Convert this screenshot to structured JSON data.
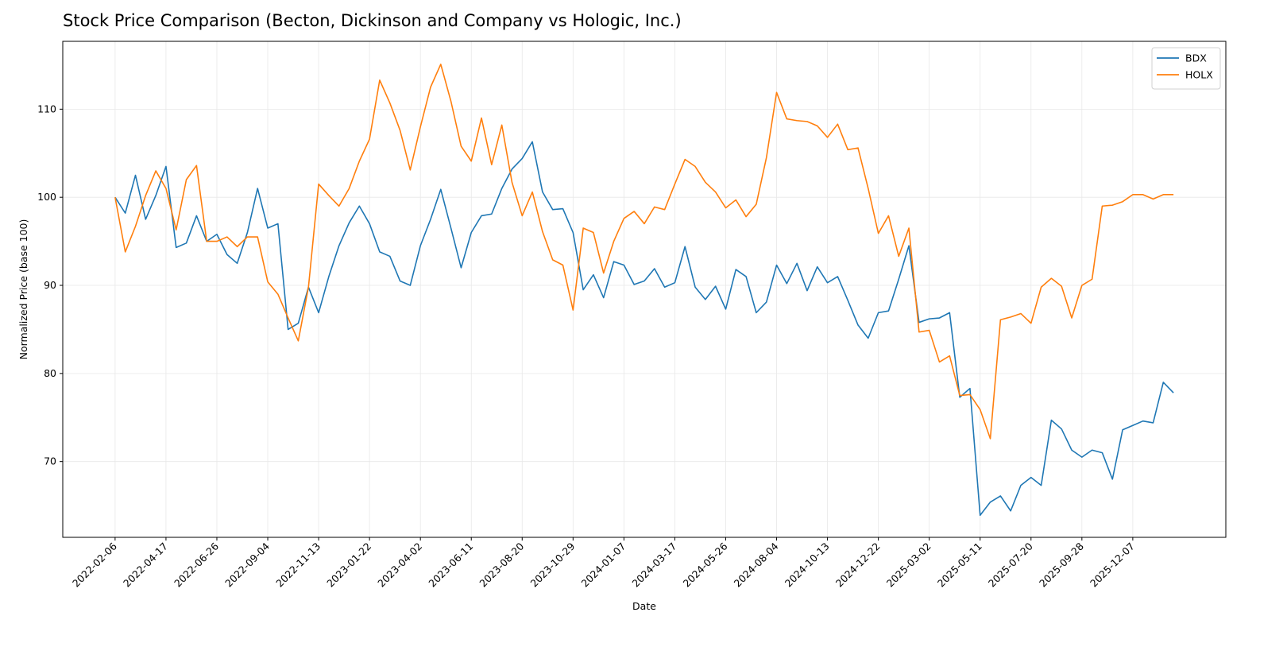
{
  "chart_data": {
    "type": "line",
    "title": "Stock Price Comparison (Becton, Dickinson and Company vs Hologic, Inc.)",
    "x_label": "Date",
    "y_label": "Normalized Price (base 100)",
    "x": [
      "2022-02-06",
      "2022-02-20",
      "2022-03-06",
      "2022-03-20",
      "2022-04-03",
      "2022-04-17",
      "2022-05-01",
      "2022-05-15",
      "2022-05-29",
      "2022-06-12",
      "2022-06-26",
      "2022-07-10",
      "2022-07-24",
      "2022-08-07",
      "2022-08-21",
      "2022-09-04",
      "2022-09-18",
      "2022-10-02",
      "2022-10-16",
      "2022-10-30",
      "2022-11-13",
      "2022-11-27",
      "2022-12-11",
      "2022-12-25",
      "2023-01-08",
      "2023-01-22",
      "2023-02-05",
      "2023-02-19",
      "2023-03-05",
      "2023-03-19",
      "2023-04-02",
      "2023-04-16",
      "2023-04-30",
      "2023-05-14",
      "2023-05-28",
      "2023-06-11",
      "2023-06-25",
      "2023-07-09",
      "2023-07-23",
      "2023-08-06",
      "2023-08-20",
      "2023-09-03",
      "2023-09-17",
      "2023-10-01",
      "2023-10-15",
      "2023-10-29",
      "2023-11-12",
      "2023-11-26",
      "2023-12-10",
      "2023-12-24",
      "2024-01-07",
      "2024-01-21",
      "2024-02-04",
      "2024-02-18",
      "2024-03-03",
      "2024-03-17",
      "2024-03-31",
      "2024-04-14",
      "2024-04-28",
      "2024-05-12",
      "2024-05-26",
      "2024-06-09",
      "2024-06-23",
      "2024-07-07",
      "2024-07-21",
      "2024-08-04",
      "2024-08-18",
      "2024-09-01",
      "2024-09-15",
      "2024-09-29",
      "2024-10-13",
      "2024-10-27",
      "2024-11-10",
      "2024-11-24",
      "2024-12-08",
      "2024-12-22",
      "2025-01-05",
      "2025-01-19",
      "2025-02-02",
      "2025-02-16",
      "2025-03-02",
      "2025-03-16",
      "2025-03-30",
      "2025-04-13",
      "2025-04-27",
      "2025-05-11",
      "2025-05-25",
      "2025-06-08",
      "2025-06-22",
      "2025-07-06",
      "2025-07-20",
      "2025-08-03",
      "2025-08-17",
      "2025-08-31",
      "2025-09-14",
      "2025-09-28",
      "2025-10-12",
      "2025-10-26",
      "2025-11-09",
      "2025-11-23",
      "2025-12-07",
      "2025-12-21",
      "2026-01-04",
      "2026-01-18",
      "2026-02-01"
    ],
    "series": [
      {
        "name": "BDX",
        "color": "#1f77b4",
        "values": [
          100,
          98.2,
          102.5,
          97.5,
          100.2,
          103.5,
          94.3,
          94.8,
          97.9,
          95,
          95.8,
          93.5,
          92.5,
          96,
          101,
          96.5,
          97,
          85,
          85.7,
          89.8,
          86.9,
          91,
          94.5,
          97.1,
          99,
          97,
          93.8,
          93.3,
          90.5,
          90,
          94.5,
          97.5,
          100.9,
          96.5,
          92,
          96,
          97.9,
          98.1,
          101,
          103.2,
          104.4,
          106.3,
          100.6,
          98.6,
          98.7,
          96,
          89.5,
          91.2,
          88.6,
          92.7,
          92.3,
          90.1,
          90.5,
          91.9,
          89.8,
          90.3,
          94.4,
          89.8,
          88.4,
          89.9,
          87.3,
          91.8,
          91,
          86.9,
          88.1,
          92.3,
          90.2,
          92.5,
          89.4,
          92.1,
          90.3,
          91,
          88.3,
          85.5,
          84,
          86.9,
          87.1,
          90.7,
          94.5,
          85.8,
          86.2,
          86.3,
          86.9,
          77.3,
          78.3,
          63.9,
          65.4,
          66.1,
          64.4,
          67.3,
          68.2,
          67.3,
          74.7,
          73.7,
          71.3,
          70.5,
          71.3,
          71,
          68,
          73.6,
          74.1,
          74.6,
          74.4,
          79,
          77.8
        ]
      },
      {
        "name": "HOLX",
        "color": "#ff7f0e",
        "values": [
          100,
          93.8,
          96.7,
          100.2,
          103,
          101,
          96.3,
          102,
          103.6,
          95,
          95,
          95.5,
          94.4,
          95.5,
          95.5,
          90.4,
          89,
          86.3,
          83.7,
          89.8,
          101.5,
          100.2,
          99,
          101,
          104.1,
          106.6,
          113.3,
          110.7,
          107.6,
          103.1,
          108,
          112.5,
          115.1,
          110.9,
          105.8,
          104.1,
          109,
          103.7,
          108.2,
          101.7,
          97.9,
          100.6,
          96.1,
          92.9,
          92.3,
          87.2,
          96.5,
          96,
          91.4,
          95,
          97.6,
          98.4,
          97,
          98.9,
          98.6,
          101.5,
          104.3,
          103.5,
          101.7,
          100.6,
          98.8,
          99.7,
          97.8,
          99.2,
          104.5,
          111.9,
          108.9,
          108.7,
          108.6,
          108.1,
          106.8,
          108.3,
          105.4,
          105.6,
          101,
          95.9,
          97.9,
          93.3,
          96.5,
          84.7,
          84.9,
          81.3,
          82,
          77.5,
          77.6,
          75.9,
          72.6,
          86.1,
          86.4,
          86.8,
          85.7,
          89.8,
          90.8,
          89.9,
          86.3,
          90,
          90.7,
          99,
          99.1,
          99.5,
          100.3,
          100.3,
          99.8,
          100.3,
          100.3
        ]
      }
    ],
    "xlim": [
      "2021-11-26",
      "2026-04-14"
    ],
    "xticks": [
      "2022-02-06",
      "2022-04-17",
      "2022-06-26",
      "2022-09-04",
      "2022-11-13",
      "2023-01-22",
      "2023-04-02",
      "2023-06-11",
      "2023-08-20",
      "2023-10-29",
      "2024-01-07",
      "2024-03-17",
      "2024-05-26",
      "2024-08-04",
      "2024-10-13",
      "2024-12-22",
      "2025-03-02",
      "2025-05-11",
      "2025-07-20",
      "2025-09-28",
      "2025-12-07"
    ],
    "ylim": [
      61.4,
      117.7
    ],
    "yticks": [
      70,
      80,
      90,
      100,
      110
    ],
    "grid": true,
    "legend": "upper right"
  }
}
